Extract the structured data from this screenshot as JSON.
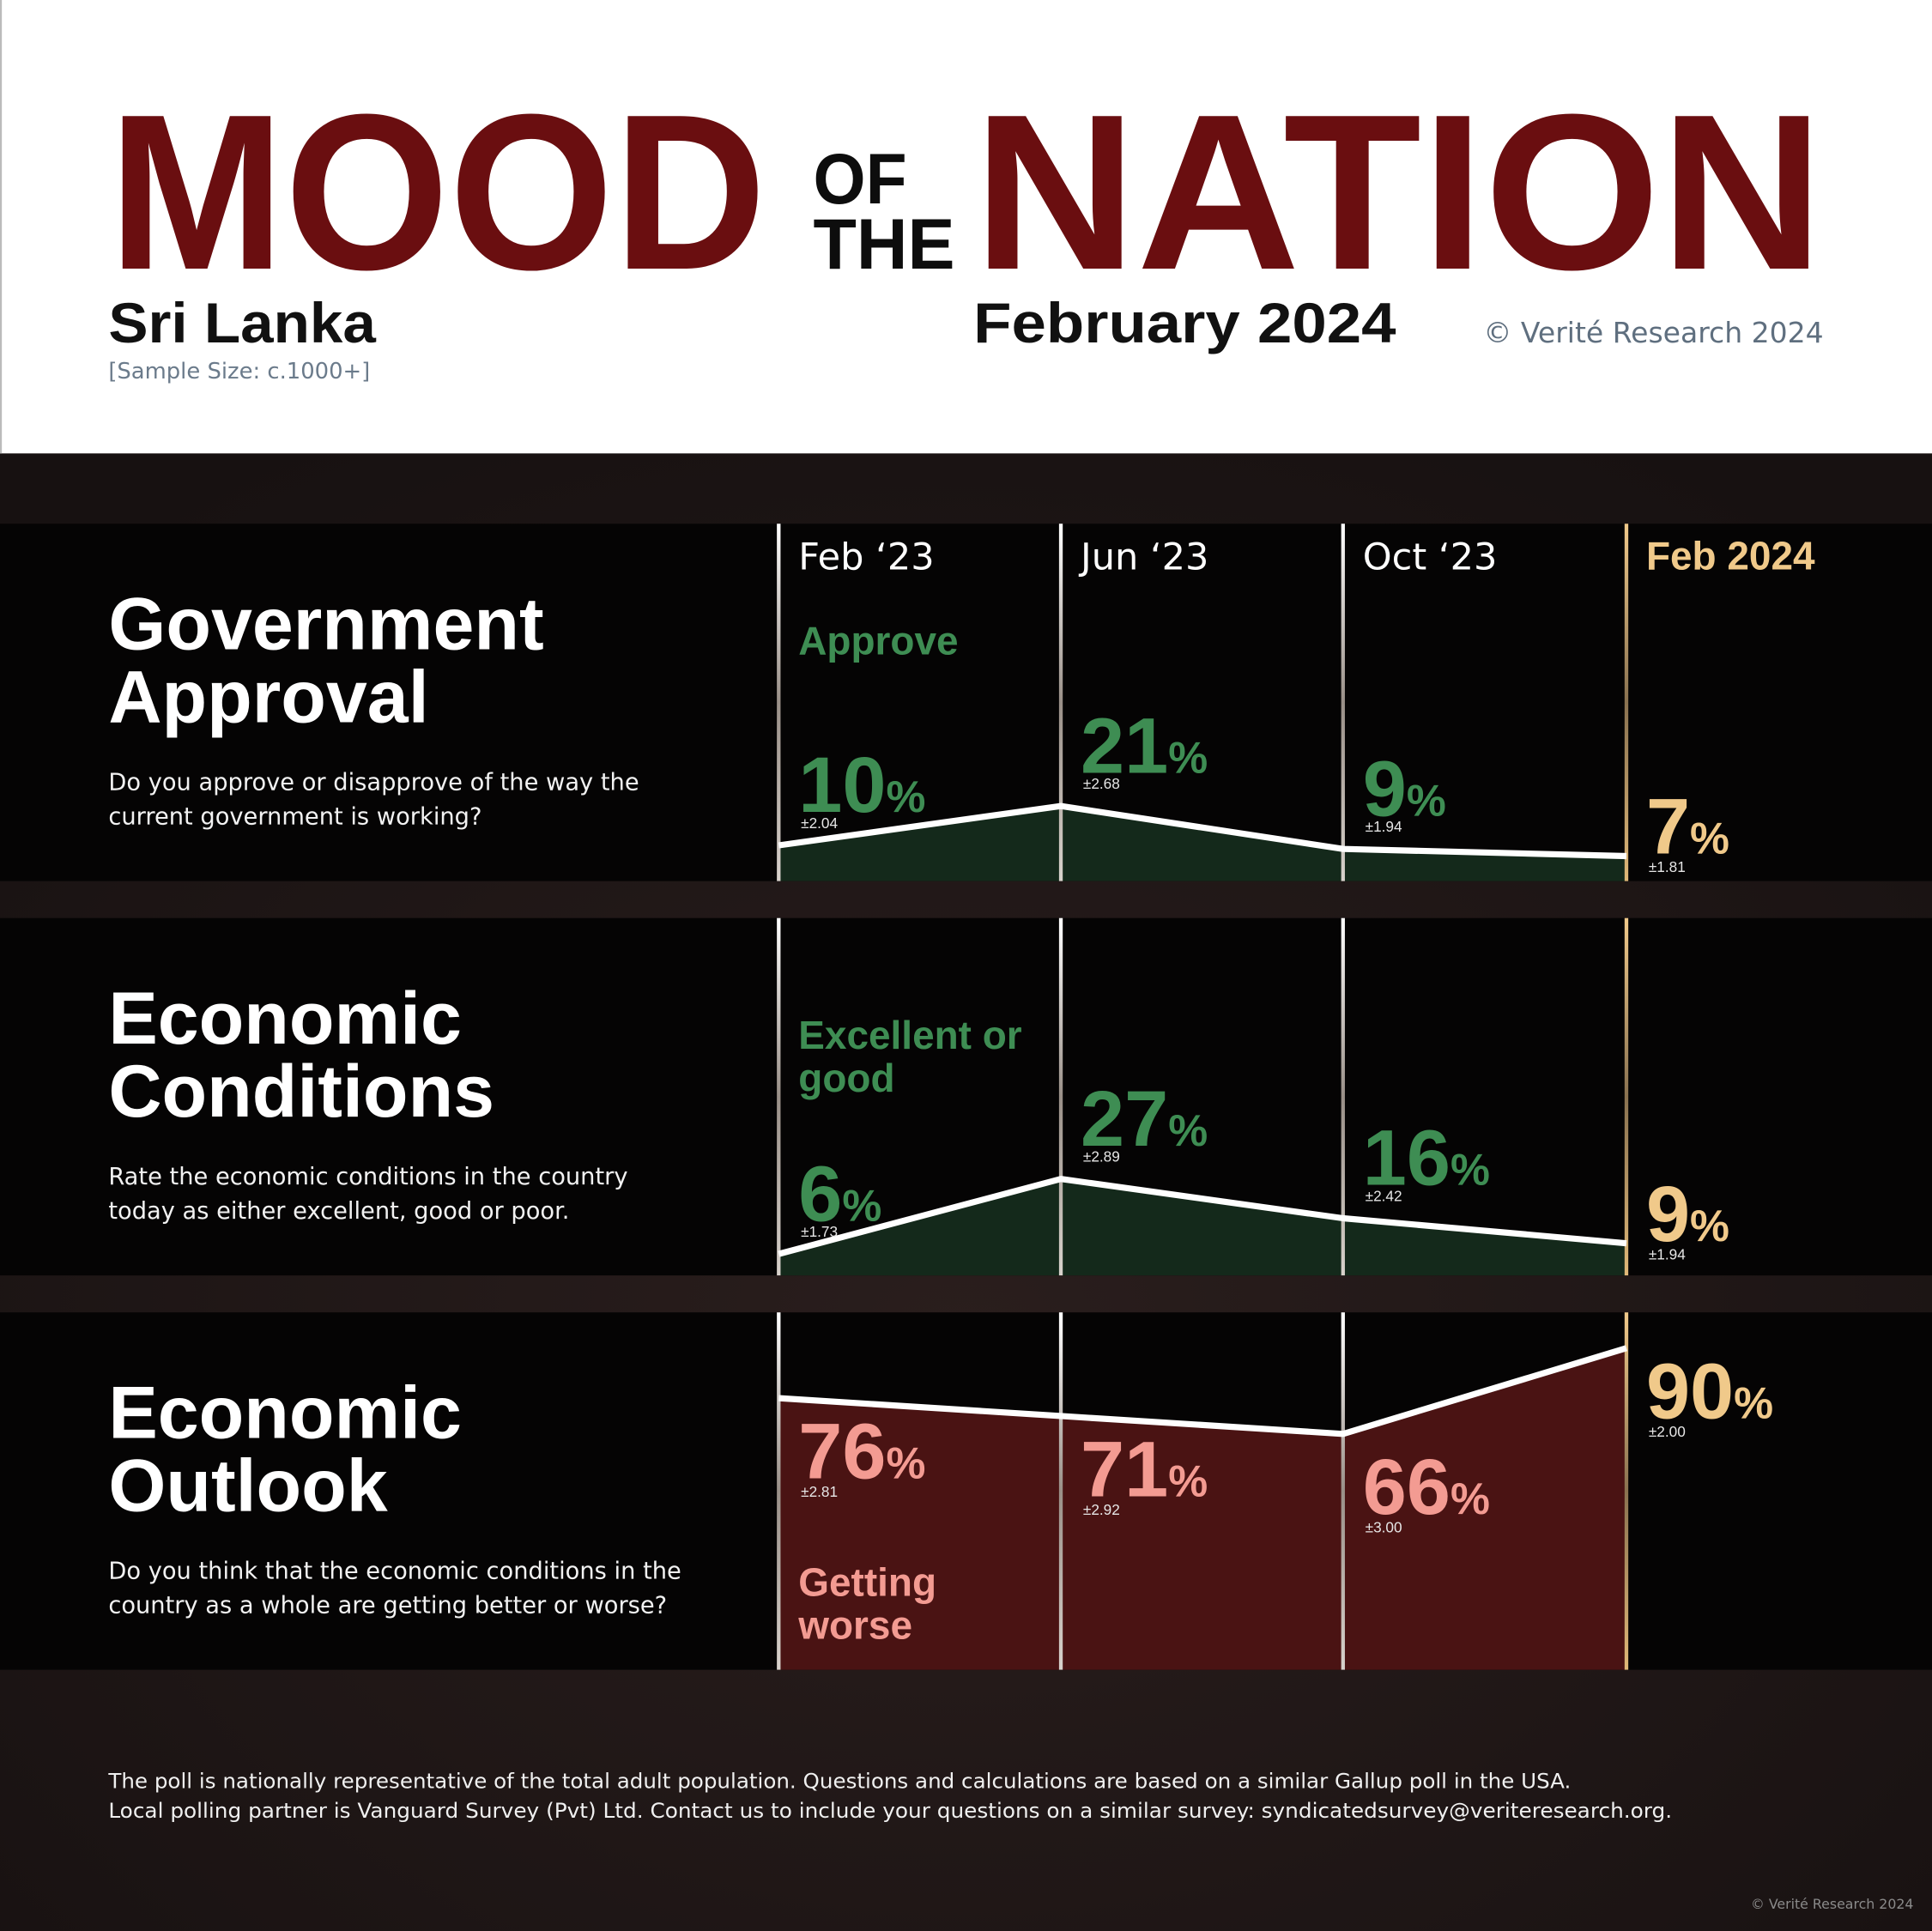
{
  "header": {
    "title_left": "MOOD",
    "title_small": [
      "OF",
      "THE"
    ],
    "title_right": "NATION",
    "country": "Sri Lanka",
    "sample_size": "[Sample Size: c.1000+]",
    "date": "February 2024",
    "copyright": "© Verité Research 2024"
  },
  "chart_data": [
    {
      "type": "area",
      "title": "Government Approval",
      "subtitle": "Do you approve or disapprove of the way the current government is working?",
      "categories": [
        "Feb ‘23",
        "Jun ‘23",
        "Oct ‘23",
        "Feb 2024"
      ],
      "ylim": [
        0,
        100
      ],
      "series": [
        {
          "name": "Approve",
          "color": "#3e8d53",
          "fill": "#14291b",
          "values": [
            10,
            21,
            9,
            7
          ],
          "value_labels": [
            "10%",
            "21%",
            "9%",
            "7%"
          ],
          "errors": [
            "±2.04",
            "±2.68",
            "±1.94",
            "±1.81"
          ]
        }
      ]
    },
    {
      "type": "area",
      "title": "Economic Conditions",
      "subtitle": "Rate the economic conditions in the country today as either excellent, good or poor.",
      "ylim": [
        0,
        100
      ],
      "series": [
        {
          "name": "Excellent or good",
          "color": "#3e8d53",
          "fill": "#14291b",
          "values": [
            6,
            27,
            16,
            9
          ],
          "value_labels": [
            "6%",
            "27%",
            "16%",
            "9%"
          ],
          "errors": [
            "±1.73",
            "±2.89",
            "±2.42",
            "±1.94"
          ]
        }
      ]
    },
    {
      "type": "area",
      "title": "Economic Outlook",
      "subtitle": "Do you think that the economic conditions in the country as a whole are getting better or worse?",
      "ylim": [
        0,
        100
      ],
      "series": [
        {
          "name": "Getting worse",
          "color": "#f39b92",
          "fill": "#4a1313",
          "values": [
            76,
            71,
            66,
            90
          ],
          "value_labels": [
            "76%",
            "71%",
            "66%",
            "90%"
          ],
          "errors": [
            "±2.81",
            "±2.92",
            "±3.00",
            "±2.00"
          ]
        }
      ]
    }
  ],
  "footer": {
    "note": [
      "The poll is nationally representative of the total adult population. Questions and calculations are based on a similar Gallup poll in the USA.",
      "Local polling partner is Vanguard Survey (Pvt) Ltd. Contact us to include your questions on a similar survey: syndicatedsurvey@veriteresearch.org."
    ],
    "copyright": "© Verité Research 2024"
  }
}
